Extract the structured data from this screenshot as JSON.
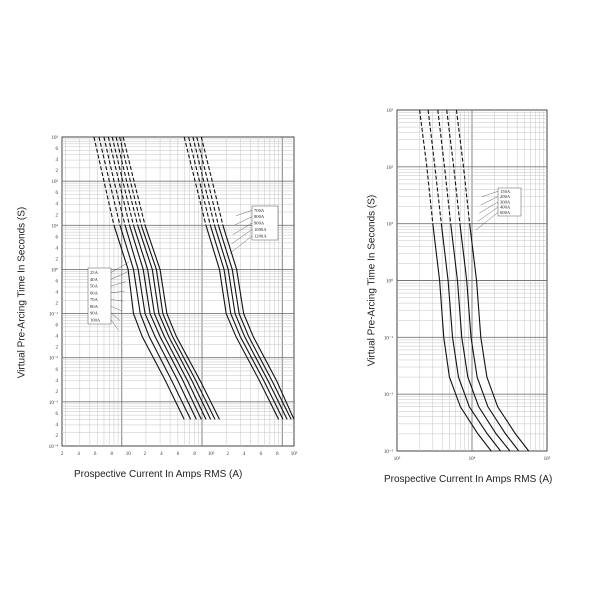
{
  "chart_data": [
    {
      "type": "line",
      "xlabel": "Prospective Current In Amps RMS (A)",
      "ylabel": "Virtual Pre-Arcing Time In Seconds (S)",
      "x_scale": "log",
      "y_scale": "log",
      "xlim": [
        1.8,
        1400
      ],
      "ylim": [
        0.0001,
        1000
      ],
      "x_tick_labels": [
        "2",
        "4",
        "6",
        "8",
        "10",
        "2",
        "4",
        "6",
        "8",
        "10²",
        "2",
        "4",
        "6",
        "8",
        "10³"
      ],
      "y_tick_labels": [
        "10³",
        "6",
        "4",
        "2",
        "10²",
        "6",
        "4",
        "2",
        "10¹",
        "6",
        "4",
        "2",
        "10⁰",
        "6",
        "4",
        "2",
        "10⁻¹",
        "6",
        "4",
        "2",
        "10⁻²",
        "6",
        "4",
        "2",
        "10⁻³",
        "6",
        "4",
        "2",
        "10⁻⁴"
      ],
      "legend_groups": [
        {
          "labels": [
            "25A",
            "40A",
            "50A",
            "60A",
            "70A",
            "80A",
            "90A",
            "100A"
          ]
        },
        {
          "labels": [
            "700A",
            "800A",
            "900A",
            "1000A",
            "1200A"
          ]
        }
      ],
      "series": [
        {
          "name": "25A",
          "values": [
            [
              4.5,
              1000
            ],
            [
              6,
              100
            ],
            [
              8,
              10
            ],
            [
              12,
              1
            ],
            [
              14,
              0.1
            ],
            [
              18,
              0.03
            ],
            [
              35,
              0.003
            ],
            [
              60,
              0.0004
            ]
          ]
        },
        {
          "name": "40A",
          "values": [
            [
              5.2,
              1000
            ],
            [
              7,
              100
            ],
            [
              9.5,
              10
            ],
            [
              14,
              1
            ],
            [
              17,
              0.1
            ],
            [
              22,
              0.03
            ],
            [
              42,
              0.003
            ],
            [
              72,
              0.0004
            ]
          ]
        },
        {
          "name": "50A",
          "values": [
            [
              6,
              1000
            ],
            [
              8,
              100
            ],
            [
              11,
              10
            ],
            [
              16,
              1
            ],
            [
              19.5,
              0.1
            ],
            [
              26,
              0.03
            ],
            [
              50,
              0.003
            ],
            [
              85,
              0.0004
            ]
          ]
        },
        {
          "name": "60A",
          "values": [
            [
              6.8,
              1000
            ],
            [
              9.2,
              100
            ],
            [
              12.5,
              10
            ],
            [
              18.5,
              1
            ],
            [
              22.5,
              0.1
            ],
            [
              30,
              0.03
            ],
            [
              58,
              0.003
            ],
            [
              98,
              0.0004
            ]
          ]
        },
        {
          "name": "70A",
          "values": [
            [
              7.6,
              1000
            ],
            [
              10.3,
              100
            ],
            [
              14,
              10
            ],
            [
              21,
              1
            ],
            [
              25.5,
              0.1
            ],
            [
              34,
              0.03
            ],
            [
              66,
              0.003
            ],
            [
              112,
              0.0004
            ]
          ]
        },
        {
          "name": "80A",
          "values": [
            [
              8.5,
              1000
            ],
            [
              11.5,
              100
            ],
            [
              15.8,
              10
            ],
            [
              24,
              1
            ],
            [
              29,
              0.1
            ],
            [
              38.5,
              0.03
            ],
            [
              75,
              0.003
            ],
            [
              128,
              0.0004
            ]
          ]
        },
        {
          "name": "90A",
          "values": [
            [
              9.4,
              1000
            ],
            [
              12.8,
              100
            ],
            [
              17.5,
              10
            ],
            [
              27,
              1
            ],
            [
              32.5,
              0.1
            ],
            [
              43,
              0.03
            ],
            [
              84,
              0.003
            ],
            [
              145,
              0.0004
            ]
          ]
        },
        {
          "name": "100A",
          "values": [
            [
              10.4,
              1000
            ],
            [
              14.2,
              100
            ],
            [
              19.5,
              10
            ],
            [
              30,
              1
            ],
            [
              36.5,
              0.1
            ],
            [
              48,
              0.03
            ],
            [
              95,
              0.003
            ],
            [
              165,
              0.0004
            ]
          ]
        },
        {
          "name": "700A",
          "values": [
            [
              60,
              1000
            ],
            [
              82,
              100
            ],
            [
              112,
              10
            ],
            [
              165,
              1
            ],
            [
              200,
              0.1
            ],
            [
              265,
              0.03
            ],
            [
              520,
              0.003
            ],
            [
              900,
              0.0004
            ]
          ]
        },
        {
          "name": "800A",
          "values": [
            [
              68,
              1000
            ],
            [
              93,
              100
            ],
            [
              127,
              10
            ],
            [
              188,
              1
            ],
            [
              228,
              0.1
            ],
            [
              300,
              0.03
            ],
            [
              590,
              0.003
            ],
            [
              1020,
              0.0004
            ]
          ]
        },
        {
          "name": "900A",
          "values": [
            [
              77,
              1000
            ],
            [
              105,
              100
            ],
            [
              143,
              10
            ],
            [
              212,
              1
            ],
            [
              258,
              0.1
            ],
            [
              340,
              0.03
            ],
            [
              665,
              0.003
            ],
            [
              1150,
              0.0004
            ]
          ]
        },
        {
          "name": "1000A",
          "values": [
            [
              86,
              1000
            ],
            [
              118,
              100
            ],
            [
              160,
              10
            ],
            [
              238,
              1
            ],
            [
              290,
              0.1
            ],
            [
              382,
              0.03
            ],
            [
              745,
              0.003
            ],
            [
              1290,
              0.0004
            ]
          ]
        },
        {
          "name": "1200A",
          "values": [
            [
              98,
              1000
            ],
            [
              134,
              100
            ],
            [
              182,
              10
            ],
            [
              270,
              1
            ],
            [
              330,
              0.1
            ],
            [
              435,
              0.03
            ],
            [
              850,
              0.003
            ],
            [
              1400,
              0.0004
            ]
          ]
        }
      ]
    },
    {
      "type": "line",
      "xlabel": "Prospective Current In Amps RMS (A)",
      "ylabel": "Virtual Pre-Arcing Time In Seconds (S)",
      "x_scale": "log",
      "y_scale": "log",
      "xlim": [
        1000,
        100000
      ],
      "ylim": [
        0.001,
        1000
      ],
      "x_tick_labels": [
        "10³",
        "10⁴",
        "10⁵"
      ],
      "y_tick_labels": [
        "10³",
        "10²",
        "10¹",
        "10⁰",
        "10⁻¹",
        "10⁻²",
        "10⁻³"
      ],
      "legend_groups": [
        {
          "labels": [
            "150A",
            "200A",
            "300A",
            "400A",
            "600A"
          ]
        }
      ],
      "series": [
        {
          "name": "150A",
          "values": [
            [
              2000,
              1000
            ],
            [
              2500,
              100
            ],
            [
              3000,
              10
            ],
            [
              3700,
              1
            ],
            [
              4200,
              0.1
            ],
            [
              5000,
              0.02
            ],
            [
              7000,
              0.006
            ],
            [
              12000,
              0.002
            ],
            [
              18000,
              0.001
            ]
          ]
        },
        {
          "name": "200A",
          "values": [
            [
              2600,
              1000
            ],
            [
              3200,
              100
            ],
            [
              3900,
              10
            ],
            [
              4800,
              1
            ],
            [
              5500,
              0.1
            ],
            [
              6600,
              0.02
            ],
            [
              9200,
              0.006
            ],
            [
              16000,
              0.002
            ],
            [
              24000,
              0.001
            ]
          ]
        },
        {
          "name": "300A",
          "values": [
            [
              3500,
              1000
            ],
            [
              4300,
              100
            ],
            [
              5200,
              10
            ],
            [
              6400,
              1
            ],
            [
              7300,
              0.1
            ],
            [
              8800,
              0.02
            ],
            [
              12300,
              0.006
            ],
            [
              21000,
              0.002
            ],
            [
              32000,
              0.001
            ]
          ]
        },
        {
          "name": "400A",
          "values": [
            [
              4600,
              1000
            ],
            [
              5700,
              100
            ],
            [
              6900,
              10
            ],
            [
              8500,
              1
            ],
            [
              9700,
              0.1
            ],
            [
              11700,
              0.02
            ],
            [
              16300,
              0.006
            ],
            [
              28000,
              0.002
            ],
            [
              42000,
              0.001
            ]
          ]
        },
        {
          "name": "600A",
          "values": [
            [
              6200,
              1000
            ],
            [
              7700,
              100
            ],
            [
              9300,
              10
            ],
            [
              11500,
              1
            ],
            [
              13100,
              0.1
            ],
            [
              15800,
              0.02
            ],
            [
              22000,
              0.006
            ],
            [
              38000,
              0.002
            ],
            [
              57000,
              0.001
            ]
          ]
        }
      ]
    }
  ]
}
